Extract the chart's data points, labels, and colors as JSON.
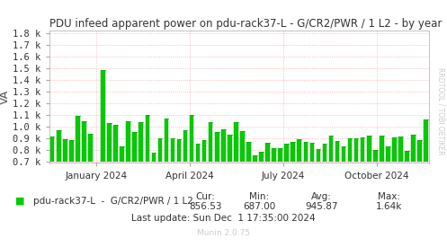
{
  "title": "PDU infeed apparent power on pdu-rack37-L - G/CR2/PWR / 1 L2 - by year",
  "ylabel": "VA",
  "yticks": [
    0.7,
    0.8,
    0.9,
    1.0,
    1.1,
    1.2,
    1.3,
    1.4,
    1.5,
    1.6,
    1.7,
    1.8
  ],
  "ytick_labels": [
    "0.7 k",
    "0.8 k",
    "0.9 k",
    "1.0 k",
    "1.1 k",
    "1.2 k",
    "1.3 k",
    "1.4 k",
    "1.5 k",
    "1.6 k",
    "1.7 k",
    "1.8 k"
  ],
  "ylim": [
    0.685,
    1.82
  ],
  "xtick_positions": [
    0.1233,
    0.3699,
    0.6164,
    0.863
  ],
  "xtick_labels": [
    "January 2024",
    "April 2024",
    "July 2024",
    "October 2024"
  ],
  "legend_label": "pdu-rack37-L  -  G/CR2/PWR / 1 L2",
  "cur": "856.53",
  "min": "687.00",
  "avg": "945.87",
  "max": "1.64k",
  "last_update": "Last update: Sun Dec  1 17:35:00 2024",
  "munin_version": "Munin 2.0.75",
  "fill_color": "#00cc00",
  "line_color": "#00aa00",
  "bg_color": "#ffffff",
  "grid_color": "#ffaaaa",
  "title_color": "#333333",
  "legend_box_color": "#00cc00",
  "watermark_color": "#cccccc",
  "watermark_text": "RRDTOOL / TOBI OETIKER",
  "xlim": [
    0.0,
    1.0
  ]
}
